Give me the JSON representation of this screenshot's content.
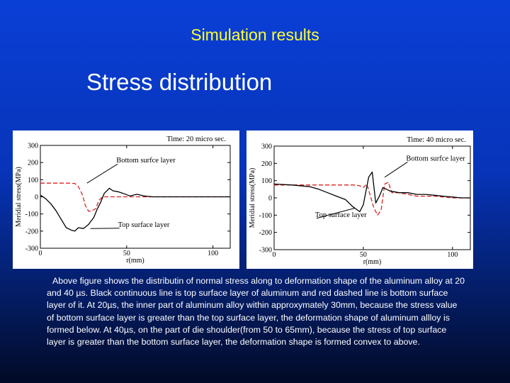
{
  "slide": {
    "title": "Simulation results",
    "subtitle": "Stress distribution",
    "caption": "Above figure shows the distributin of normal stress along to deformation shape of the aluminum alloy at 20 and 40 µs. Black continuous line is top surface layer of aluminum and red dashed line is bottom surface layer of it. At 20µs,  the inner part of aluminum alloy within approxymately 30mm, because the stress value of bottom surface layer is greater than the top surface layer, the deformation shape of aluminum allloy is formed below. At 40µs, on the part of die shoulder(from 50 to 65mm), because the stress of  top surface layer is greater than the bottom surface layer, the deformation shape is formed convex to above."
  },
  "chart_data": [
    {
      "type": "line",
      "title": "Time: 20 micro sec.",
      "xlabel": "r(mm)",
      "ylabel": "Meridial stress(MPa)",
      "xlim": [
        0,
        110
      ],
      "ylim": [
        -300,
        300
      ],
      "xticks": [
        0,
        50,
        100
      ],
      "yticks": [
        300,
        200,
        100,
        0,
        -100,
        -200,
        -300
      ],
      "series": [
        {
          "name": "Bottom surfce layer",
          "style": "dashed",
          "color": "#dd2222",
          "x": [
            0,
            4,
            8,
            12,
            16,
            20,
            22,
            24,
            25,
            26,
            28,
            30,
            32,
            34,
            36,
            40,
            45,
            50,
            55,
            60,
            65,
            70,
            80,
            90,
            100,
            110
          ],
          "y": [
            80,
            80,
            80,
            80,
            80,
            78,
            60,
            20,
            -10,
            -50,
            -85,
            -80,
            -70,
            -20,
            0,
            0,
            0,
            0,
            0,
            0,
            0,
            0,
            0,
            0,
            0,
            0
          ]
        },
        {
          "name": "Top surface layer",
          "style": "solid",
          "color": "#000000",
          "x": [
            0,
            3,
            6,
            9,
            12,
            15,
            18,
            20,
            22,
            25,
            28,
            31,
            33,
            35,
            37,
            40,
            42,
            45,
            48,
            52,
            56,
            60,
            65,
            70,
            75,
            80,
            90,
            100,
            110
          ],
          "y": [
            10,
            -10,
            -40,
            -80,
            -130,
            -180,
            -195,
            -200,
            -180,
            -185,
            -160,
            -120,
            -70,
            -30,
            20,
            50,
            35,
            30,
            20,
            5,
            15,
            5,
            0,
            0,
            0,
            0,
            0,
            0,
            0
          ]
        }
      ],
      "annotations": [
        {
          "text": "Bottom surfce layer",
          "at": [
            44,
            200
          ],
          "points_to": [
            27,
            80
          ]
        },
        {
          "text": "Top surface layer",
          "at": [
            45,
            -175
          ],
          "points_to": [
            29,
            -185
          ]
        }
      ]
    },
    {
      "type": "line",
      "title": "Time: 40 micro sec.",
      "xlabel": "r(mm)",
      "ylabel": "Meridial stress(MPa)",
      "xlim": [
        0,
        110
      ],
      "ylim": [
        -300,
        300
      ],
      "xticks": [
        0,
        50,
        100
      ],
      "yticks": [
        300,
        200,
        100,
        0,
        -100,
        -200,
        -300
      ],
      "series": [
        {
          "name": "Bottom surfce layer",
          "style": "dashed",
          "color": "#dd2222",
          "x": [
            0,
            10,
            20,
            30,
            40,
            45,
            48,
            50,
            52,
            54,
            56,
            58,
            60,
            62,
            64,
            66,
            70,
            80,
            90,
            100,
            110
          ],
          "y": [
            75,
            75,
            75,
            75,
            75,
            75,
            70,
            60,
            80,
            10,
            -60,
            -100,
            -70,
            80,
            90,
            30,
            30,
            10,
            10,
            0,
            0
          ]
        },
        {
          "name": "Top surface layer",
          "style": "solid",
          "color": "#000000",
          "x": [
            0,
            10,
            20,
            25,
            30,
            35,
            40,
            44,
            48,
            50,
            53,
            55,
            57,
            59,
            61,
            63,
            65,
            70,
            75,
            80,
            85,
            90,
            95,
            100,
            105,
            110
          ],
          "y": [
            80,
            75,
            65,
            50,
            30,
            10,
            -10,
            -50,
            -80,
            -40,
            120,
            150,
            -30,
            10,
            60,
            50,
            40,
            30,
            30,
            20,
            20,
            15,
            10,
            5,
            0,
            0
          ]
        }
      ],
      "annotations": [
        {
          "text": "Bottom surfce layer",
          "at": [
            74,
            216
          ],
          "points_to": [
            62,
            120
          ]
        },
        {
          "text": "Top surface layer",
          "at": [
            23,
            -110
          ],
          "points_to": [
            45,
            -60
          ]
        }
      ]
    }
  ]
}
